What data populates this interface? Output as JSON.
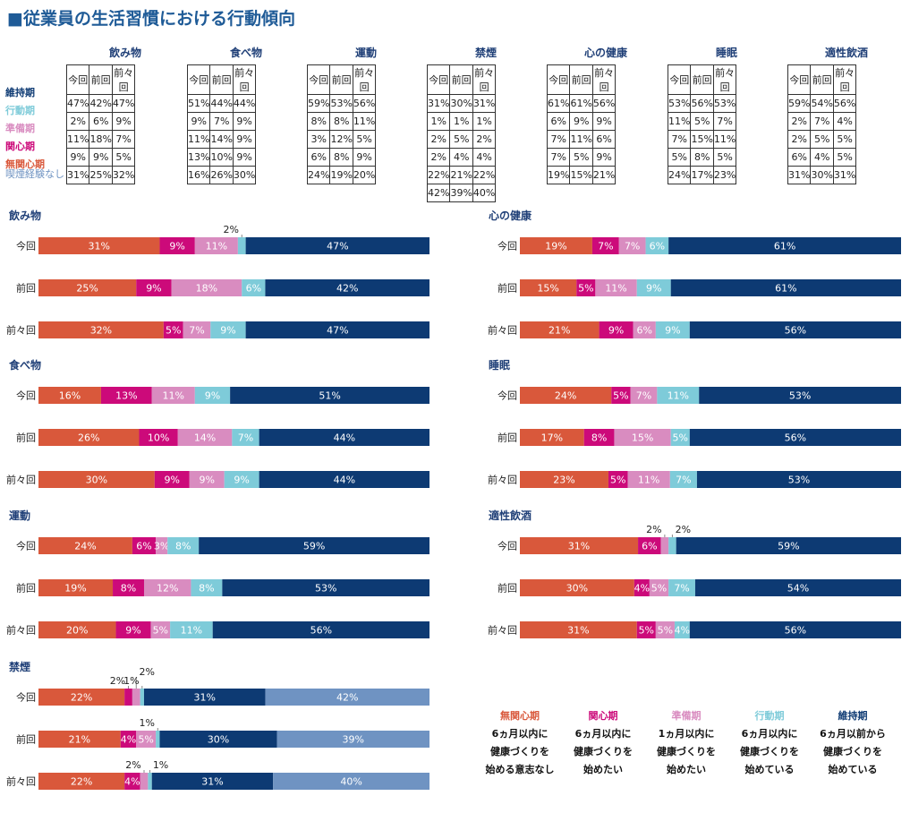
{
  "page_title": "■従業員の生活習慣における行動傾向",
  "stage_labels": [
    "維持期",
    "行動期",
    "準備期",
    "関心期",
    "無関心期"
  ],
  "no_smoking_label": "喫煙経験なし",
  "column_headers": [
    "今回",
    "前回",
    "前々回"
  ],
  "colors": {
    "無関心期": "#d9583b",
    "関心期": "#cc0a7a",
    "準備期": "#d98cc0",
    "行動期": "#7ecbd9",
    "維持期": "#0d3a73",
    "喫煙経験なし": "#6f93c2",
    "title": "#1f5b97"
  },
  "tables": [
    {
      "name": "飲み物",
      "rows": [
        [
          "47%",
          "42%",
          "47%"
        ],
        [
          "2%",
          "6%",
          "9%"
        ],
        [
          "11%",
          "18%",
          "7%"
        ],
        [
          "9%",
          "9%",
          "5%"
        ],
        [
          "31%",
          "25%",
          "32%"
        ]
      ]
    },
    {
      "name": "食べ物",
      "rows": [
        [
          "51%",
          "44%",
          "44%"
        ],
        [
          "9%",
          "7%",
          "9%"
        ],
        [
          "11%",
          "14%",
          "9%"
        ],
        [
          "13%",
          "10%",
          "9%"
        ],
        [
          "16%",
          "26%",
          "30%"
        ]
      ]
    },
    {
      "name": "運動",
      "rows": [
        [
          "59%",
          "53%",
          "56%"
        ],
        [
          "8%",
          "8%",
          "11%"
        ],
        [
          "3%",
          "12%",
          "5%"
        ],
        [
          "6%",
          "8%",
          "9%"
        ],
        [
          "24%",
          "19%",
          "20%"
        ]
      ]
    },
    {
      "name": "禁煙",
      "rows": [
        [
          "31%",
          "30%",
          "31%"
        ],
        [
          "1%",
          "1%",
          "1%"
        ],
        [
          "2%",
          "5%",
          "2%"
        ],
        [
          "2%",
          "4%",
          "4%"
        ],
        [
          "22%",
          "21%",
          "22%"
        ],
        [
          "42%",
          "39%",
          "40%"
        ]
      ]
    },
    {
      "name": "心の健康",
      "rows": [
        [
          "61%",
          "61%",
          "56%"
        ],
        [
          "6%",
          "9%",
          "9%"
        ],
        [
          "7%",
          "11%",
          "6%"
        ],
        [
          "7%",
          "5%",
          "9%"
        ],
        [
          "19%",
          "15%",
          "21%"
        ]
      ]
    },
    {
      "name": "睡眠",
      "rows": [
        [
          "53%",
          "56%",
          "53%"
        ],
        [
          "11%",
          "5%",
          "7%"
        ],
        [
          "7%",
          "15%",
          "11%"
        ],
        [
          "5%",
          "8%",
          "5%"
        ],
        [
          "24%",
          "17%",
          "23%"
        ]
      ]
    },
    {
      "name": "適性飲酒",
      "rows": [
        [
          "59%",
          "54%",
          "56%"
        ],
        [
          "2%",
          "7%",
          "4%"
        ],
        [
          "2%",
          "5%",
          "5%"
        ],
        [
          "6%",
          "4%",
          "5%"
        ],
        [
          "31%",
          "30%",
          "31%"
        ]
      ]
    }
  ],
  "chart_data": [
    {
      "type": "bar",
      "stacked": true,
      "orientation": "horizontal",
      "title": "飲み物",
      "categories": [
        "今回",
        "前回",
        "前々回"
      ],
      "series": [
        {
          "name": "無関心期",
          "values": [
            31,
            25,
            32
          ]
        },
        {
          "name": "関心期",
          "values": [
            9,
            9,
            5
          ]
        },
        {
          "name": "準備期",
          "values": [
            11,
            18,
            7
          ]
        },
        {
          "name": "行動期",
          "values": [
            2,
            6,
            9
          ]
        },
        {
          "name": "維持期",
          "values": [
            47,
            42,
            47
          ]
        }
      ]
    },
    {
      "type": "bar",
      "stacked": true,
      "orientation": "horizontal",
      "title": "食べ物",
      "categories": [
        "今回",
        "前回",
        "前々回"
      ],
      "series": [
        {
          "name": "無関心期",
          "values": [
            16,
            26,
            30
          ]
        },
        {
          "name": "関心期",
          "values": [
            13,
            10,
            9
          ]
        },
        {
          "name": "準備期",
          "values": [
            11,
            14,
            9
          ]
        },
        {
          "name": "行動期",
          "values": [
            9,
            7,
            9
          ]
        },
        {
          "name": "維持期",
          "values": [
            51,
            44,
            44
          ]
        }
      ]
    },
    {
      "type": "bar",
      "stacked": true,
      "orientation": "horizontal",
      "title": "運動",
      "categories": [
        "今回",
        "前回",
        "前々回"
      ],
      "series": [
        {
          "name": "無関心期",
          "values": [
            24,
            19,
            20
          ]
        },
        {
          "name": "関心期",
          "values": [
            6,
            8,
            9
          ]
        },
        {
          "name": "準備期",
          "values": [
            3,
            12,
            5
          ]
        },
        {
          "name": "行動期",
          "values": [
            8,
            8,
            11
          ]
        },
        {
          "name": "維持期",
          "values": [
            59,
            53,
            56
          ]
        }
      ]
    },
    {
      "type": "bar",
      "stacked": true,
      "orientation": "horizontal",
      "title": "禁煙",
      "categories": [
        "今回",
        "前回",
        "前々回"
      ],
      "series": [
        {
          "name": "無関心期",
          "values": [
            22,
            21,
            22
          ]
        },
        {
          "name": "関心期",
          "values": [
            2,
            4,
            4
          ]
        },
        {
          "name": "準備期",
          "values": [
            2,
            5,
            2
          ]
        },
        {
          "name": "行動期",
          "values": [
            1,
            1,
            1
          ]
        },
        {
          "name": "維持期",
          "values": [
            31,
            30,
            31
          ]
        },
        {
          "name": "喫煙経験なし",
          "values": [
            42,
            39,
            40
          ]
        }
      ]
    },
    {
      "type": "bar",
      "stacked": true,
      "orientation": "horizontal",
      "title": "心の健康",
      "categories": [
        "今回",
        "前回",
        "前々回"
      ],
      "series": [
        {
          "name": "無関心期",
          "values": [
            19,
            15,
            21
          ]
        },
        {
          "name": "関心期",
          "values": [
            7,
            5,
            9
          ]
        },
        {
          "name": "準備期",
          "values": [
            7,
            11,
            6
          ]
        },
        {
          "name": "行動期",
          "values": [
            6,
            9,
            9
          ]
        },
        {
          "name": "維持期",
          "values": [
            61,
            61,
            56
          ]
        }
      ]
    },
    {
      "type": "bar",
      "stacked": true,
      "orientation": "horizontal",
      "title": "睡眠",
      "categories": [
        "今回",
        "前回",
        "前々回"
      ],
      "series": [
        {
          "name": "無関心期",
          "values": [
            24,
            17,
            23
          ]
        },
        {
          "name": "関心期",
          "values": [
            5,
            8,
            5
          ]
        },
        {
          "name": "準備期",
          "values": [
            7,
            15,
            11
          ]
        },
        {
          "name": "行動期",
          "values": [
            11,
            5,
            7
          ]
        },
        {
          "name": "維持期",
          "values": [
            53,
            56,
            53
          ]
        }
      ]
    },
    {
      "type": "bar",
      "stacked": true,
      "orientation": "horizontal",
      "title": "適性飲酒",
      "categories": [
        "今回",
        "前回",
        "前々回"
      ],
      "series": [
        {
          "name": "無関心期",
          "values": [
            31,
            30,
            31
          ]
        },
        {
          "name": "関心期",
          "values": [
            6,
            4,
            5
          ]
        },
        {
          "name": "準備期",
          "values": [
            2,
            5,
            5
          ]
        },
        {
          "name": "行動期",
          "values": [
            2,
            7,
            4
          ]
        },
        {
          "name": "維持期",
          "values": [
            59,
            54,
            56
          ]
        }
      ]
    }
  ],
  "legend": [
    {
      "name": "無関心期",
      "desc": [
        "6ヵ月以内に",
        "健康づくりを",
        "始める意志なし"
      ]
    },
    {
      "name": "関心期",
      "desc": [
        "6ヵ月以内に",
        "健康づくりを",
        "始めたい"
      ]
    },
    {
      "name": "準備期",
      "desc": [
        "1ヵ月以内に",
        "健康づくりを",
        "始めたい"
      ]
    },
    {
      "name": "行動期",
      "desc": [
        "6ヵ月以内に",
        "健康づくりを",
        "始めている"
      ]
    },
    {
      "name": "維持期",
      "desc": [
        "6ヵ月以前から",
        "健康づくりを",
        "始めている"
      ]
    }
  ]
}
